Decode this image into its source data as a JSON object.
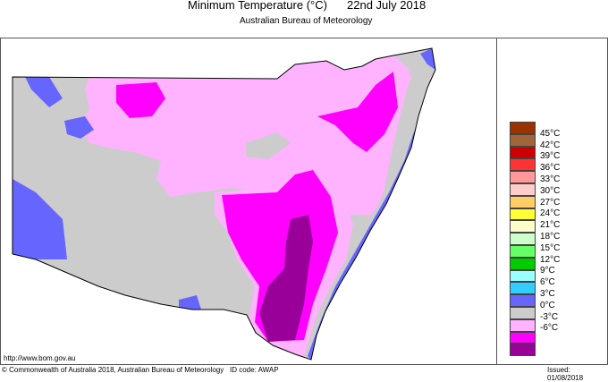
{
  "header": {
    "title": "Minimum Temperature (°C)",
    "date": "22nd July 2018",
    "subtitle": "Australian Bureau of Meteorology"
  },
  "legend": {
    "colors": [
      "#993300",
      "#a0663a",
      "#cc0000",
      "#ff3333",
      "#ff9999",
      "#ffcccc",
      "#ffcc66",
      "#ffff33",
      "#ffffcc",
      "#ccffcc",
      "#66ff66",
      "#00cc00",
      "#99ffff",
      "#33ccff",
      "#6666ff",
      "#cccccc",
      "#ffb3ff",
      "#ff00ff",
      "#990099"
    ],
    "labels": [
      "45°C",
      "42°C",
      "39°C",
      "36°C",
      "33°C",
      "30°C",
      "27°C",
      "24°C",
      "21°C",
      "18°C",
      "15°C",
      "12°C",
      "9°C",
      "6°C",
      "3°C",
      "0°C",
      "-3°C",
      "-6°C"
    ]
  },
  "footer": {
    "url": "http://www.bom.gov.au",
    "copyright": "© Commonwealth of Australia 2018, Australian Bureau of Meteorology",
    "id_code": "ID code: AWAP",
    "issued": "Issued: 01/08/2018"
  }
}
